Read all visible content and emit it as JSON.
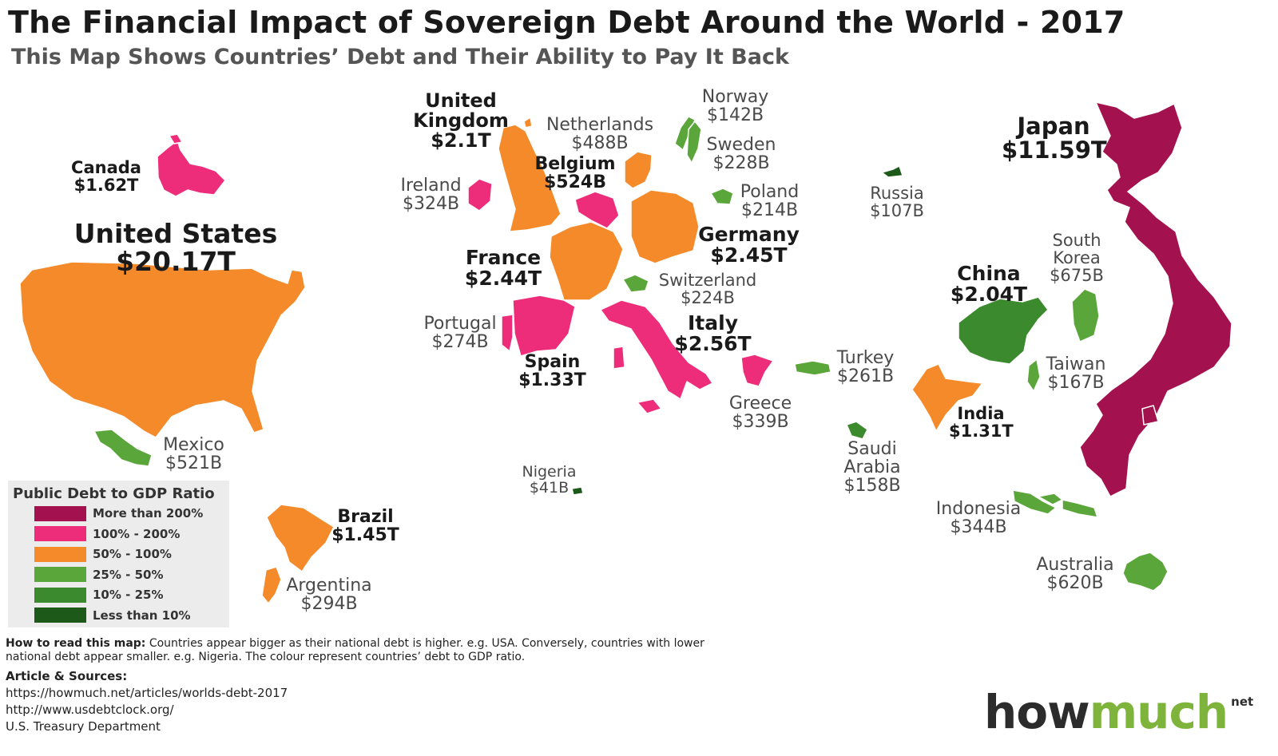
{
  "title": "The Financial Impact of Sovereign Debt Around the World - 2017",
  "subtitle": "This Map Shows Countries’ Debt and Their Ability to Pay It Back",
  "colors": {
    "more_than_200": "#a3124e",
    "100_200": "#ee2d7a",
    "50_100": "#f48a2a",
    "25_50": "#5ba63a",
    "10_25": "#3c8a2e",
    "less_than_10": "#1d5a1a"
  },
  "countries": [
    {
      "id": "united-states",
      "name": "United States",
      "value": "$20.17T",
      "debt_usd_billion": 20170,
      "band": "50_100"
    },
    {
      "id": "canada",
      "name": "Canada",
      "value": "$1.62T",
      "debt_usd_billion": 1620,
      "band": "100_200"
    },
    {
      "id": "mexico",
      "name": "Mexico",
      "value": "$521B",
      "debt_usd_billion": 521,
      "band": "25_50"
    },
    {
      "id": "brazil",
      "name": "Brazil",
      "value": "$1.45T",
      "debt_usd_billion": 1450,
      "band": "50_100"
    },
    {
      "id": "argentina",
      "name": "Argentina",
      "value": "$294B",
      "debt_usd_billion": 294,
      "band": "50_100"
    },
    {
      "id": "united-kingdom",
      "name": "United Kingdom",
      "value": "$2.1T",
      "debt_usd_billion": 2100,
      "band": "50_100"
    },
    {
      "id": "ireland",
      "name": "Ireland",
      "value": "$324B",
      "debt_usd_billion": 324,
      "band": "100_200"
    },
    {
      "id": "netherlands",
      "name": "Netherlands",
      "value": "$488B",
      "debt_usd_billion": 488,
      "band": "50_100"
    },
    {
      "id": "belgium",
      "name": "Belgium",
      "value": "$524B",
      "debt_usd_billion": 524,
      "band": "100_200"
    },
    {
      "id": "france",
      "name": "France",
      "value": "$2.44T",
      "debt_usd_billion": 2440,
      "band": "50_100"
    },
    {
      "id": "germany",
      "name": "Germany",
      "value": "$2.45T",
      "debt_usd_billion": 2450,
      "band": "50_100"
    },
    {
      "id": "portugal",
      "name": "Portugal",
      "value": "$274B",
      "debt_usd_billion": 274,
      "band": "100_200"
    },
    {
      "id": "spain",
      "name": "Spain",
      "value": "$1.33T",
      "debt_usd_billion": 1330,
      "band": "100_200"
    },
    {
      "id": "switzerland",
      "name": "Switzerland",
      "value": "$224B",
      "debt_usd_billion": 224,
      "band": "25_50"
    },
    {
      "id": "italy",
      "name": "Italy",
      "value": "$2.56T",
      "debt_usd_billion": 2560,
      "band": "100_200"
    },
    {
      "id": "norway",
      "name": "Norway",
      "value": "$142B",
      "debt_usd_billion": 142,
      "band": "25_50"
    },
    {
      "id": "sweden",
      "name": "Sweden",
      "value": "$228B",
      "debt_usd_billion": 228,
      "band": "25_50"
    },
    {
      "id": "poland",
      "name": "Poland",
      "value": "$214B",
      "debt_usd_billion": 214,
      "band": "25_50"
    },
    {
      "id": "greece",
      "name": "Greece",
      "value": "$339B",
      "debt_usd_billion": 339,
      "band": "100_200"
    },
    {
      "id": "nigeria",
      "name": "Nigeria",
      "value": "$41B",
      "debt_usd_billion": 41,
      "band": "less_than_10"
    },
    {
      "id": "russia",
      "name": "Russia",
      "value": "$107B",
      "debt_usd_billion": 107,
      "band": "less_than_10"
    },
    {
      "id": "turkey",
      "name": "Turkey",
      "value": "$261B",
      "debt_usd_billion": 261,
      "band": "25_50"
    },
    {
      "id": "saudi-arabia",
      "name": "Saudi Arabia",
      "value": "$158B",
      "debt_usd_billion": 158,
      "band": "10_25"
    },
    {
      "id": "china",
      "name": "China",
      "value": "$2.04T",
      "debt_usd_billion": 2040,
      "band": "10_25"
    },
    {
      "id": "india",
      "name": "India",
      "value": "$1.31T",
      "debt_usd_billion": 1310,
      "band": "50_100"
    },
    {
      "id": "south-korea",
      "name": "South Korea",
      "value": "$675B",
      "debt_usd_billion": 675,
      "band": "25_50"
    },
    {
      "id": "taiwan",
      "name": "Taiwan",
      "value": "$167B",
      "debt_usd_billion": 167,
      "band": "25_50"
    },
    {
      "id": "japan",
      "name": "Japan",
      "value": "$11.59T",
      "debt_usd_billion": 11590,
      "band": "more_than_200"
    },
    {
      "id": "indonesia",
      "name": "Indonesia",
      "value": "$344B",
      "debt_usd_billion": 344,
      "band": "25_50"
    },
    {
      "id": "australia",
      "name": "Australia",
      "value": "$620B",
      "debt_usd_billion": 620,
      "band": "25_50"
    }
  ],
  "legend": {
    "title": "Public Debt to GDP Ratio",
    "items": [
      {
        "label": "More than 200%",
        "band": "more_than_200"
      },
      {
        "label": "100% - 200%",
        "band": "100_200"
      },
      {
        "label": "50% - 100%",
        "band": "50_100"
      },
      {
        "label": "25% - 50%",
        "band": "25_50"
      },
      {
        "label": "10% - 25%",
        "band": "10_25"
      },
      {
        "label": "Less than 10%",
        "band": "less_than_10"
      }
    ]
  },
  "howto": {
    "heading": "How to read this map:",
    "text": "Countries appear bigger as their national debt is higher. e.g. USA. Conversely, countries with lower national debt appear smaller. e.g. Nigeria. The colour represent countries’ debt to GDP ratio."
  },
  "sources": {
    "heading": "Article & Sources:",
    "items": [
      "https://howmuch.net/articles/worlds-debt-2017",
      "http://www.usdebtclock.org/",
      "U.S. Treasury Department"
    ]
  },
  "logo": {
    "how": "how",
    "much": "much",
    "net": "net"
  }
}
